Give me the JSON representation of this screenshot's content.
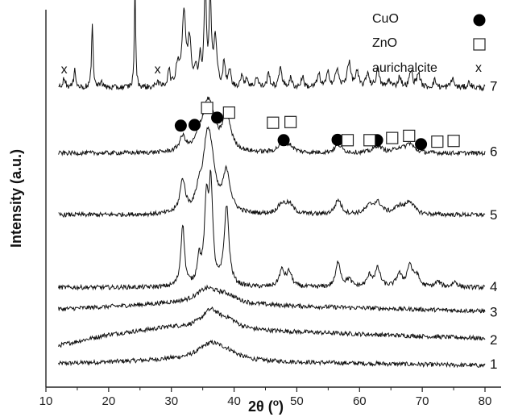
{
  "chart_data": {
    "type": "line",
    "xlabel_prefix": "2θ (",
    "xlabel_unit": "o",
    "xlabel_suffix": ")",
    "ylabel": "Intensity (a.u.)",
    "xlim": [
      10,
      80
    ],
    "xticks": [
      10,
      20,
      30,
      40,
      50,
      60,
      70,
      80
    ],
    "legend": [
      {
        "label": "CuO",
        "marker": "filled-circle"
      },
      {
        "label": "ZnO",
        "marker": "open-square"
      },
      {
        "label": "aurichalcite",
        "marker": "x"
      }
    ],
    "series": [
      {
        "name": "1",
        "offset": 0.0,
        "noise": 0.006,
        "baseline": [
          [
            12,
            0.02
          ],
          [
            30,
            0.03
          ],
          [
            45,
            0.025
          ],
          [
            80,
            0.015
          ]
        ],
        "peaks": [
          [
            36.3,
            0.045,
            2.5
          ],
          [
            39.0,
            0.015,
            2.0
          ]
        ]
      },
      {
        "name": "2",
        "offset": 0.07,
        "noise": 0.006,
        "baseline": [
          [
            12,
            0.0
          ],
          [
            20,
            0.03
          ],
          [
            30,
            0.05
          ],
          [
            45,
            0.04
          ],
          [
            80,
            0.02
          ]
        ],
        "peaks": [
          [
            36.3,
            0.05,
            1.8
          ],
          [
            39.2,
            0.02,
            1.6
          ]
        ]
      },
      {
        "name": "3",
        "offset": 0.15,
        "noise": 0.006,
        "baseline": [
          [
            12,
            0.02
          ],
          [
            30,
            0.035
          ],
          [
            45,
            0.03
          ],
          [
            80,
            0.015
          ]
        ],
        "peaks": [
          [
            35.7,
            0.04,
            2.2
          ],
          [
            38.8,
            0.02,
            2.0
          ]
        ]
      },
      {
        "name": "4",
        "offset": 0.23,
        "noise": 0.006,
        "baseline": [
          [
            12,
            0.0
          ],
          [
            80,
            0.0
          ]
        ],
        "peaks": [
          [
            31.8,
            0.17,
            0.35
          ],
          [
            34.4,
            0.07,
            0.35
          ],
          [
            35.6,
            0.22,
            0.4
          ],
          [
            36.3,
            0.26,
            0.35
          ],
          [
            38.8,
            0.22,
            0.45
          ],
          [
            47.6,
            0.045,
            0.5
          ],
          [
            48.8,
            0.04,
            0.5
          ],
          [
            56.6,
            0.07,
            0.45
          ],
          [
            58.3,
            0.02,
            0.5
          ],
          [
            61.6,
            0.03,
            0.5
          ],
          [
            62.9,
            0.05,
            0.5
          ],
          [
            66.3,
            0.035,
            0.5
          ],
          [
            68.0,
            0.06,
            0.5
          ],
          [
            69.1,
            0.03,
            0.5
          ],
          [
            72.5,
            0.015,
            0.5
          ],
          [
            75.2,
            0.015,
            0.5
          ]
        ]
      },
      {
        "name": "5",
        "offset": 0.43,
        "noise": 0.006,
        "baseline": [
          [
            12,
            0.0
          ],
          [
            80,
            0.0
          ]
        ],
        "peaks": [
          [
            31.8,
            0.09,
            0.5
          ],
          [
            34.4,
            0.05,
            0.6
          ],
          [
            35.6,
            0.14,
            0.7
          ],
          [
            36.3,
            0.13,
            0.8
          ],
          [
            38.8,
            0.11,
            0.7
          ],
          [
            47.6,
            0.025,
            0.8
          ],
          [
            48.8,
            0.025,
            0.8
          ],
          [
            56.6,
            0.04,
            0.6
          ],
          [
            61.6,
            0.02,
            0.8
          ],
          [
            62.9,
            0.03,
            0.8
          ],
          [
            66.3,
            0.02,
            0.8
          ],
          [
            68.0,
            0.035,
            0.8
          ]
        ]
      },
      {
        "name": "6",
        "offset": 0.6,
        "noise": 0.006,
        "baseline": [
          [
            12,
            0.0
          ],
          [
            80,
            0.0
          ]
        ],
        "peaks": [
          [
            31.8,
            0.04,
            0.6
          ],
          [
            34.4,
            0.03,
            0.6
          ],
          [
            35.6,
            0.09,
            0.9
          ],
          [
            36.3,
            0.07,
            0.9
          ],
          [
            38.8,
            0.1,
            0.8
          ],
          [
            47.6,
            0.02,
            0.8
          ],
          [
            48.8,
            0.018,
            0.8
          ],
          [
            56.6,
            0.022,
            0.7
          ],
          [
            62.9,
            0.02,
            0.8
          ],
          [
            66.3,
            0.012,
            0.8
          ],
          [
            68.0,
            0.025,
            0.8
          ]
        ]
      },
      {
        "name": "7",
        "offset": 0.78,
        "noise": 0.008,
        "baseline": [
          [
            12,
            0.0
          ],
          [
            40,
            0.0
          ],
          [
            80,
            0.0
          ]
        ],
        "peaks": [
          [
            12.9,
            0.025,
            0.3
          ],
          [
            14.6,
            0.06,
            0.15
          ],
          [
            17.4,
            0.17,
            0.15
          ],
          [
            18.8,
            0.02,
            0.2
          ],
          [
            24.2,
            0.29,
            0.12
          ],
          [
            27.8,
            0.02,
            0.2
          ],
          [
            29.6,
            0.05,
            0.2
          ],
          [
            31.0,
            0.06,
            0.3
          ],
          [
            32.0,
            0.2,
            0.35
          ],
          [
            32.9,
            0.12,
            0.3
          ],
          [
            33.9,
            0.05,
            0.25
          ],
          [
            34.6,
            0.07,
            0.2
          ],
          [
            35.4,
            0.29,
            0.2
          ],
          [
            36.2,
            0.24,
            0.2
          ],
          [
            37.0,
            0.13,
            0.3
          ],
          [
            38.4,
            0.07,
            0.2
          ],
          [
            39.3,
            0.05,
            0.2
          ],
          [
            41.2,
            0.03,
            0.25
          ],
          [
            42.0,
            0.025,
            0.25
          ],
          [
            43.6,
            0.03,
            0.25
          ],
          [
            45.5,
            0.04,
            0.25
          ],
          [
            47.4,
            0.06,
            0.25
          ],
          [
            49.0,
            0.025,
            0.25
          ],
          [
            50.9,
            0.03,
            0.25
          ],
          [
            53.5,
            0.035,
            0.3
          ],
          [
            55.0,
            0.04,
            0.3
          ],
          [
            56.4,
            0.05,
            0.3
          ],
          [
            58.3,
            0.07,
            0.35
          ],
          [
            59.6,
            0.04,
            0.3
          ],
          [
            61.3,
            0.04,
            0.3
          ],
          [
            62.9,
            0.05,
            0.3
          ],
          [
            64.7,
            0.02,
            0.3
          ],
          [
            66.4,
            0.03,
            0.3
          ],
          [
            68.2,
            0.045,
            0.3
          ],
          [
            69.4,
            0.04,
            0.3
          ],
          [
            72.0,
            0.02,
            0.3
          ],
          [
            74.8,
            0.025,
            0.3
          ],
          [
            77.5,
            0.015,
            0.3
          ]
        ]
      }
    ],
    "markers": {
      "cuo": [
        [
          31.5,
          0.676
        ],
        [
          33.7,
          0.678
        ],
        [
          37.3,
          0.698
        ],
        [
          47.9,
          0.636
        ],
        [
          56.5,
          0.637
        ],
        [
          62.8,
          0.636
        ],
        [
          69.8,
          0.625
        ]
      ],
      "zno": [
        [
          35.7,
          0.725
        ],
        [
          39.2,
          0.712
        ],
        [
          46.2,
          0.684
        ],
        [
          49.0,
          0.686
        ],
        [
          58.1,
          0.636
        ],
        [
          61.6,
          0.636
        ],
        [
          65.2,
          0.642
        ],
        [
          67.9,
          0.648
        ],
        [
          72.4,
          0.632
        ],
        [
          75.0,
          0.634
        ]
      ],
      "aurichalcite": [
        [
          12.9,
          0.831
        ],
        [
          27.8,
          0.831
        ]
      ]
    }
  }
}
